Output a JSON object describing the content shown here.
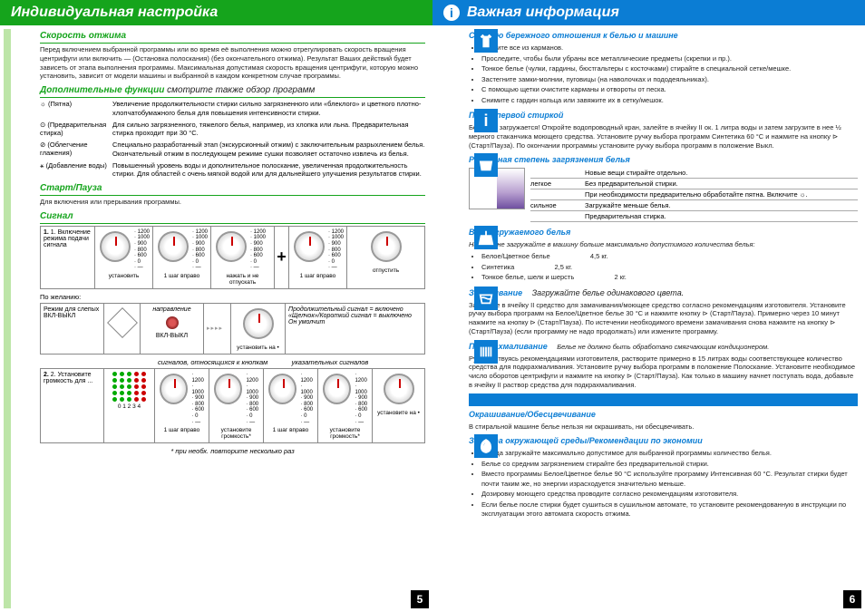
{
  "left": {
    "title": "Индивидуальная настройка",
    "s1": {
      "title": "Скорость отжима",
      "body": "Перед включением выбранной программы или во время её выполнения можно отрегулировать скорость вращения центрифуги или включить — (Остановка полоскания) (без окончательного отжима). Результат Ваших действий будет зависеть от этапа выполнения программы. Максимальная допустимая скорость вращения центрифуги, которую можно установить, зависит от модели машины и выбранной в каждом конкретном случае программы."
    },
    "s2": {
      "title": "Дополнительные функции",
      "suffix": " смотрите также обзор программ",
      "rows": [
        {
          "icon": "☼ (Пятна)",
          "text": "Увеличение продолжительности стирки сильно загрязненного или «блеклого» и цветного плотно-хлопчатобумажного белья для повышения интенсивности стирки."
        },
        {
          "icon": "⊙ (Предварительная стирка)",
          "text": "Для сильно загрязненного, тяжелого белья, например, из хлопка или льна. Предварительная стирка проходит при 30 °C."
        },
        {
          "icon": "⊘ (Облегчение глажения)",
          "text": "Специально разработанный этап (экскурсионный отжим) с заключительным разрыхлением белья. Окончательный отжим в последующем режиме сушки позволяет остаточно извлечь из белья."
        },
        {
          "icon": "⚹ (Добавление воды)",
          "text": "Повышенный уровень воды и дополнительное полоскание, увеличенная продолжительность стирки. Для областей с очень мягкой водой или для дальнейшего улучшения результатов стирки."
        }
      ]
    },
    "s3": {
      "title": "Старт/Пауза",
      "body": "Для включения или прерывания программы."
    },
    "s4": {
      "title": "Сигнал",
      "row1": {
        "intro": "1. Включение режима подачи сигнала",
        "steps": [
          "установить",
          "1 шаг вправо",
          "нажать и не отпускать",
          "1 шаг вправо",
          "отпустить"
        ],
        "speeds": [
          "1200",
          "1000",
          "900",
          "800",
          "600",
          "0",
          "—"
        ]
      },
      "row2": {
        "label": "По желанию:",
        "mode": "Режим для слепых ВКЛ-ВЫКЛ",
        "napr": "направление",
        "onoff": "ВКЛ-ВЫКЛ",
        "set": "установить на •",
        "long": "Продолжительный сигнал = включено",
        "short": "«Щелчок»/Короткий сигнал = выключено",
        "cont": "Он умолчит"
      },
      "row3": {
        "h1": "сигналов, относящихся к кнопкам",
        "h2": "указательных сигналов",
        "intro": "2. Установите громкость для ...",
        "steps": [
          "1 шаг вправо",
          "установите громкость*",
          "1 шаг вправо",
          "установите громкость*",
          "установите на •"
        ],
        "foot": "* при необх. повторите несколько раз",
        "scale": "0  1  2  3  4"
      }
    }
  },
  "right": {
    "title": "Важная информация",
    "s1": {
      "title": "С целью бережного отношения к белью и машине",
      "items": [
        "Уберите все из карманов.",
        "Проследите, чтобы были убраны все металлические предметы (скрепки и пр.).",
        "Тонкое белье (чулки, гардины, бюстгальтеры с косточками) стирайте в специальной сетке/мешке.",
        "Застегните замки-молнии, пуговицы (на наволочках и пододеяльниках).",
        "С помощью щетки очистите карманы и отвороты от песка.",
        "Снимите с гардин кольца или завяжите их в сетку/мешок."
      ]
    },
    "s2": {
      "title": "Перед первой стиркой",
      "body": "Белье не загружается! Откройте водопроводный кран, залейте в ячейку II ок. 1 литра воды и затем загрузите в нее ½ мерного стаканчика моющего средства. Установите ручку выбора программ Синтетика 60 °C и нажмите на кнопку ⊳ (Старт/Пауза). По окончании программы установите ручку выбора программ в положение Выкл."
    },
    "s3": {
      "title": "Различная степень загрязнения белья",
      "new": "Новые вещи стирайте отдельно.",
      "rows": [
        {
          "k": "легкое",
          "v": "Без предварительной стирки."
        },
        {
          "k": "",
          "v": "При необходимости предварительно обработайте пятна. Включите ☼."
        },
        {
          "k": "сильное",
          "v": "Загружайте меньше белья."
        },
        {
          "k": "",
          "v": "Предварительная стирка."
        }
      ]
    },
    "s4": {
      "title": "Вес загружаемого белья",
      "intro": "Никогда не загружайте в машину больше максимально допустимого количества белья:",
      "rows": [
        {
          "k": "Белое/Цветное белье",
          "v": "4,5 кг."
        },
        {
          "k": "Синтетика",
          "v": "2,5 кг."
        },
        {
          "k": "Тонкое белье, шелк и шерсть",
          "v": "2 кг."
        }
      ]
    },
    "s5": {
      "title": "Замачивание",
      "suffix": "Загружайте белье одинакового цвета.",
      "body": "Загрузите в ячейку II средство для замачивания/моющее средство согласно рекомендациям изготовителя. Установите ручку выбора программ на Белое/Цветное белье 30 °C и нажмите кнопку ⊳ (Старт/Пауза). Примерно через 10 минут нажмите на кнопку ⊳ (Старт/Пауза). По истечении необходимого времени замачивания снова нажмите на кнопку ⊳ (Старт/Пауза) (если программу не надо продолжать) или измените программу."
    },
    "s6": {
      "title": "Подкрахмаливание",
      "suffix": "Белье не должно быть обработано смягчающим кондиционером.",
      "body": "Руководствуясь рекомендациями изготовителя, растворите примерно в 15 литрах воды соответствующее количество средства для подкрахмаливания. Установите ручку выбора программ в положение Полоскание. Установите необходимое число оборотов центрифуги и нажмите на кнопку ⊳ (Старт/Пауза). Как только в машину начнет поступать вода, добавьте в ячейку II раствор средства для подкрахмаливания."
    },
    "s7": {
      "title": "Окрашивание/Обесцвечивание",
      "body": "В стиральной машине белье нельзя ни окрашивать, ни обесцвечивать."
    },
    "s8": {
      "title": "Защита окружающей среды/Рекомендации по экономии",
      "items": [
        "Всегда загружайте максимально допустимое для выбранной программы количество белья.",
        "Белье со средним загрязнением стирайте без предварительной стирки.",
        "Вместо программы Белое/Цветное белье 90 °C используйте программу Интенсивная 60 °C. Результат стирки будет почти таким же, но энергии израсходуется значительно меньше.",
        "Дозировку моющего средства проводите согласно рекомендациям изготовителя.",
        "Если белье после стирки будет сушиться в сушильном автомате, то установите рекомендованную в инструкции по эксплуатации этого автомата скорость отжима."
      ]
    }
  },
  "pages": {
    "l": "5",
    "r": "6"
  }
}
